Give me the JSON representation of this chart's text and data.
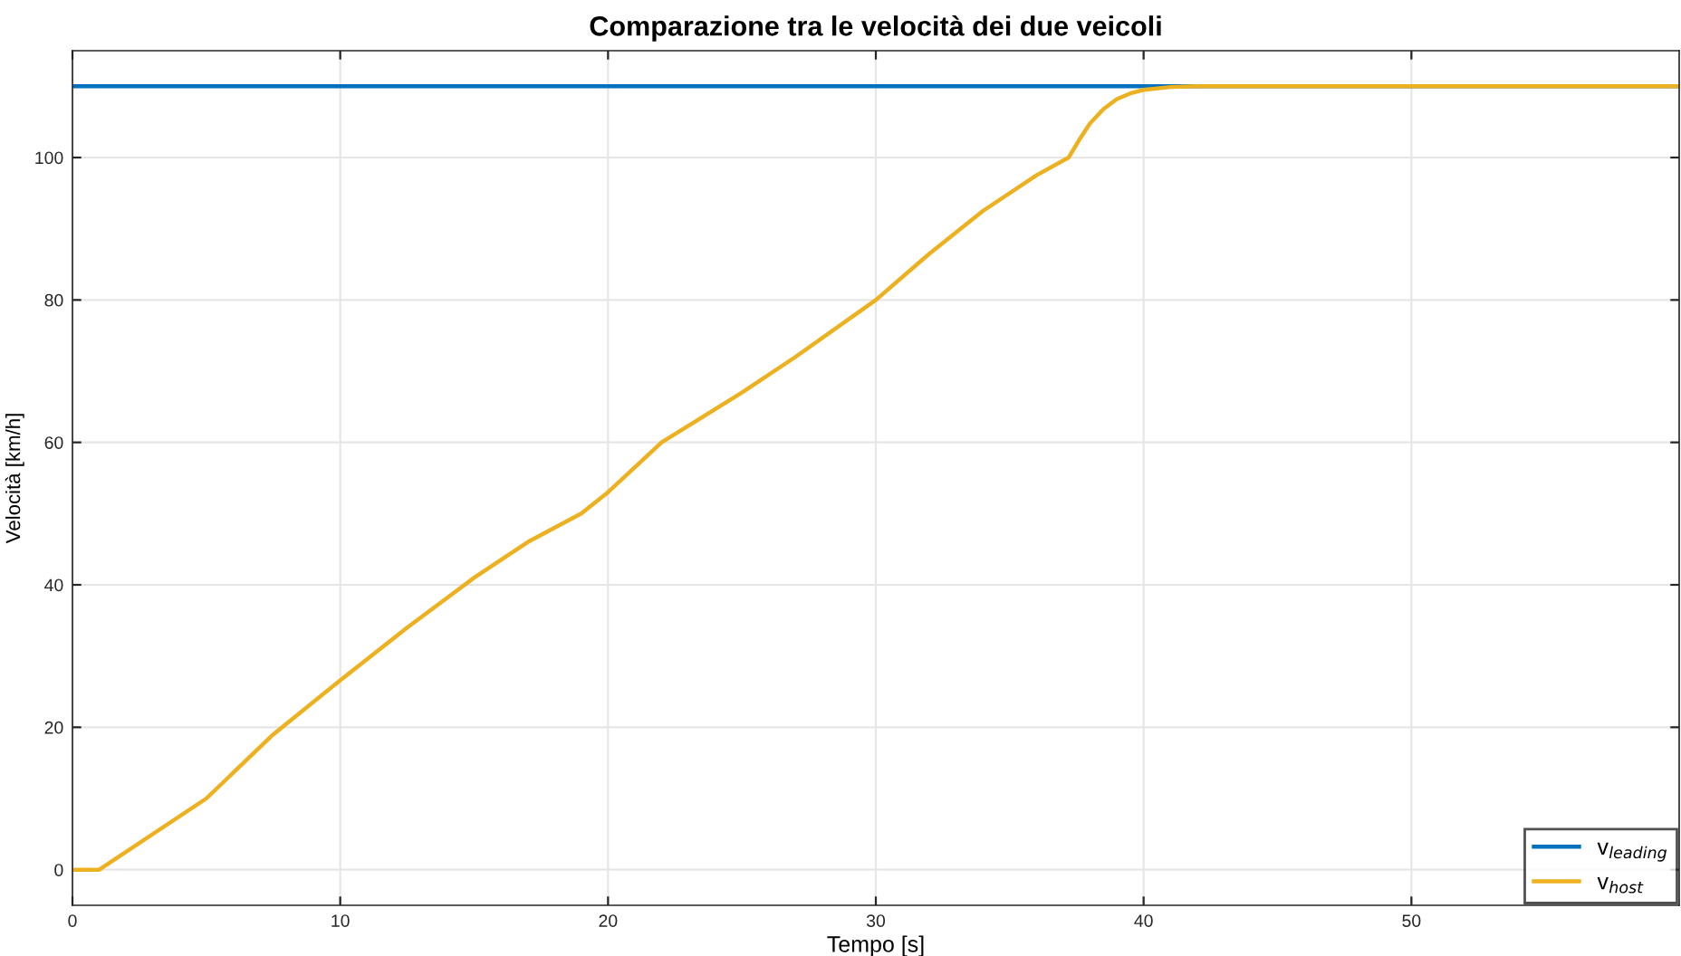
{
  "chart_data": {
    "type": "line",
    "title": "Comparazione tra le velocità dei due veicoli",
    "xlabel": "Tempo [s]",
    "ylabel": "Velocità [km/h]",
    "series": [
      {
        "name": "v$_{leading}$",
        "color": "#0072bd",
        "x": [
          0,
          60
        ],
        "values": [
          110,
          110
        ]
      },
      {
        "name": "v$_{host}$",
        "color": "#edb120",
        "x": [
          0,
          1,
          5,
          7.5,
          10,
          12.5,
          15,
          17,
          19,
          20,
          22,
          25,
          27,
          30,
          32,
          34,
          36,
          37.2,
          37.6,
          38,
          38.5,
          39,
          39.5,
          40,
          41,
          42,
          44,
          60
        ],
        "values": [
          0,
          0,
          10,
          19,
          26.6,
          34,
          41,
          46,
          50,
          53,
          60,
          67,
          72,
          80,
          86.5,
          92.5,
          97.5,
          100,
          102.5,
          104.8,
          106.8,
          108.2,
          109,
          109.5,
          109.9,
          110,
          110,
          110
        ]
      }
    ],
    "xlim": [
      0,
      60
    ],
    "xticks": [
      0,
      10,
      20,
      30,
      40,
      50
    ],
    "ylim": [
      -5,
      115
    ],
    "yticks": [
      0,
      20,
      40,
      60,
      80,
      100
    ],
    "grid": true,
    "legend": "bottom right",
    "marker": "none",
    "line_style": "solid"
  }
}
